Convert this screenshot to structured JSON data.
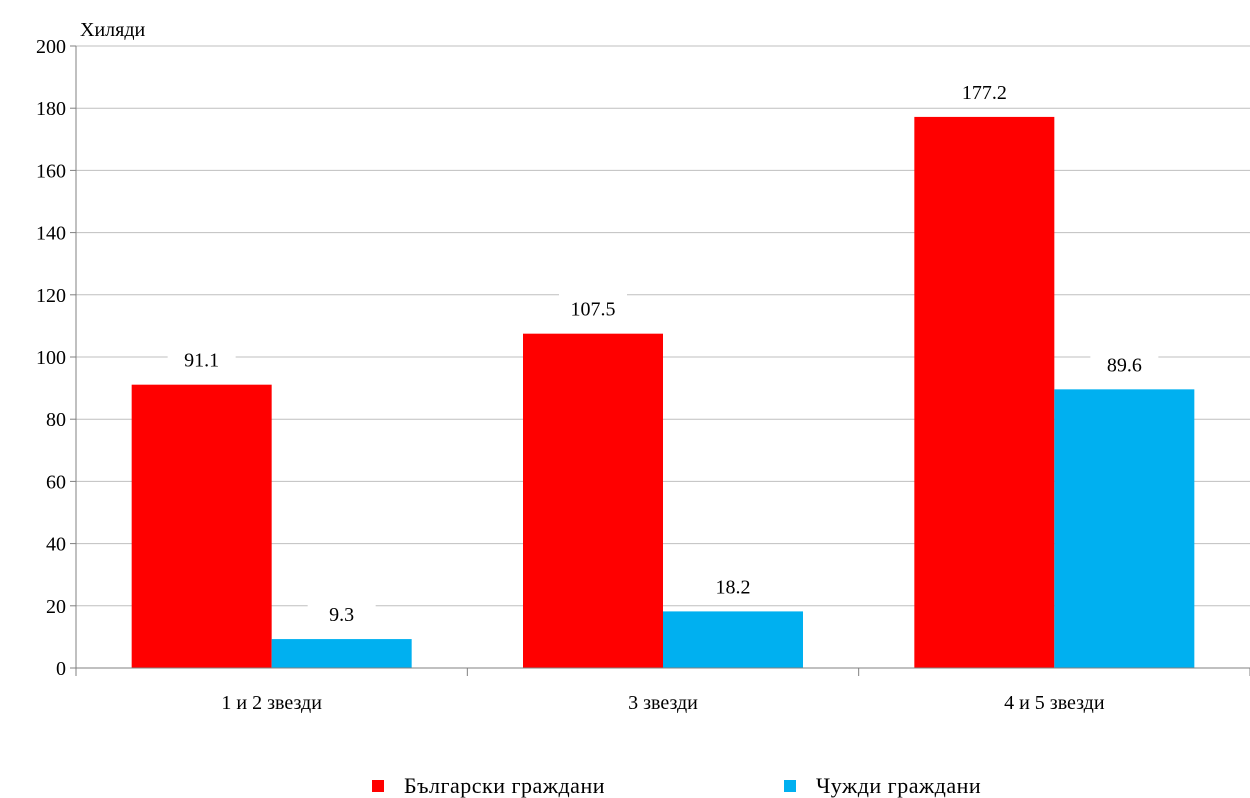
{
  "chart_data": {
    "type": "bar",
    "unit_label": "Хиляди",
    "categories": [
      "1 и 2 звезди",
      "3 звезди",
      "4 и 5 звезди"
    ],
    "series": [
      {
        "name": "Български граждани",
        "color": "#ff0000",
        "values": [
          91.1,
          107.5,
          177.2
        ]
      },
      {
        "name": "Чужди граждани",
        "color": "#00b0f0",
        "values": [
          9.3,
          18.2,
          89.6
        ]
      }
    ],
    "ylim": [
      0,
      200
    ],
    "yticks": [
      0,
      20,
      40,
      60,
      80,
      100,
      120,
      140,
      160,
      180,
      200
    ],
    "grid": true,
    "legend_position": "bottom"
  }
}
